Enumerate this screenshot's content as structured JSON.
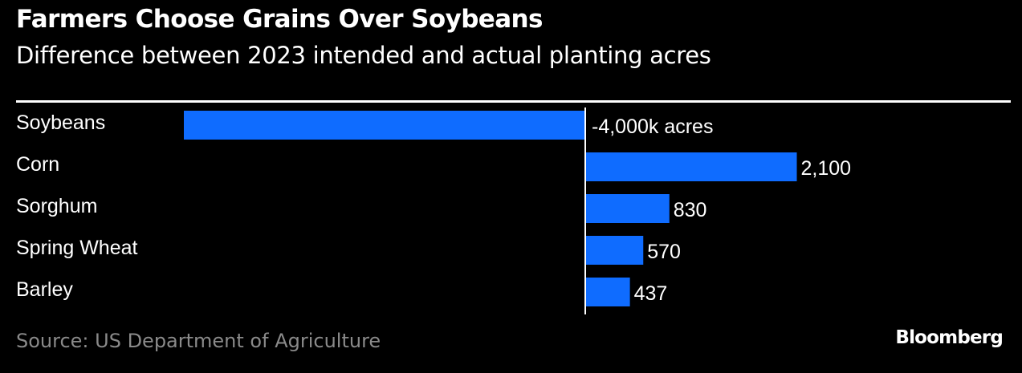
{
  "chart_data": {
    "type": "bar",
    "orientation": "horizontal",
    "title": "Farmers Choose Grains Over Soybeans",
    "subtitle": "Difference between 2023 intended and actual planting acres",
    "categories": [
      "Soybeans",
      "Corn",
      "Sorghum",
      "Spring Wheat",
      "Barley"
    ],
    "values": [
      -4000,
      2100,
      830,
      570,
      437
    ],
    "data_labels": [
      "-4,000k acres",
      "2,100",
      "830",
      "570",
      "437"
    ],
    "xlim": [
      -4000,
      2200
    ],
    "bar_color": "#0f6cff",
    "grid": false
  },
  "source": "Source: US Department of Agriculture",
  "brand": "Bloomberg"
}
